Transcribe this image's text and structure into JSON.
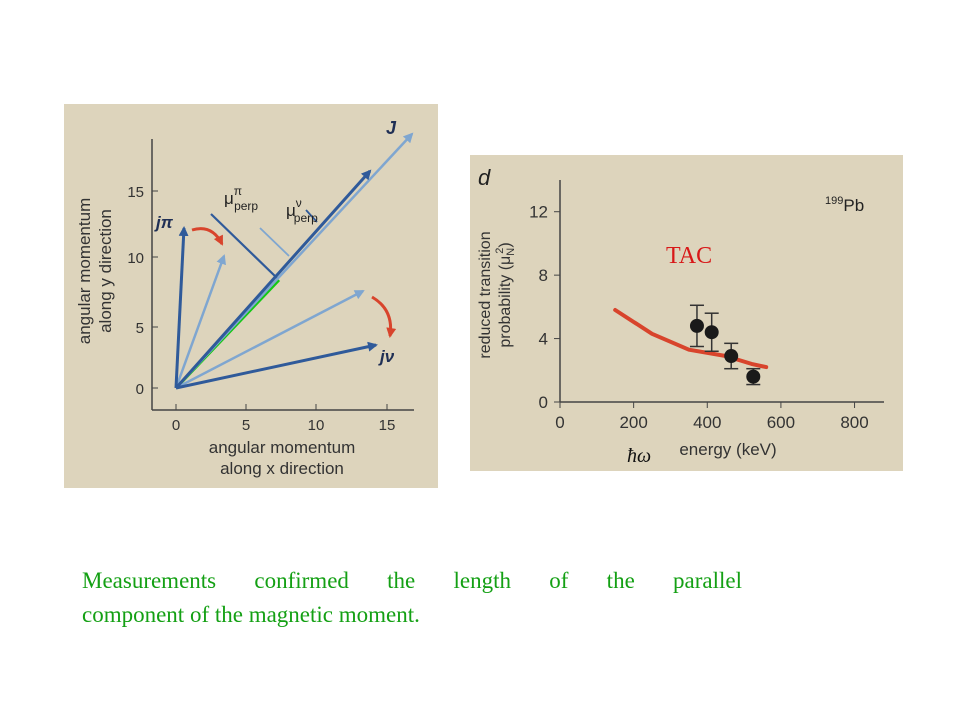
{
  "colors": {
    "background": "#ffffff",
    "panel": "#ddd4bc",
    "dark_vector": "#2f5a9a",
    "light_vector": "#7fa6d0",
    "red": "#d8442c",
    "green": "#14c814",
    "caption": "#14a014",
    "tac_label": "#d81818"
  },
  "left_diagram": {
    "x_label": [
      "angular momentum",
      "along x direction"
    ],
    "y_label": [
      "angular momentum",
      "along y direction"
    ],
    "x_ticks": [
      "0",
      "5",
      "10",
      "15"
    ],
    "y_ticks": [
      "0",
      "5",
      "10",
      "15"
    ],
    "vectors": {
      "j": "J",
      "j_pi": "jπ",
      "j_nu": "jν",
      "mu_pi": "μ",
      "mu_pi_sup": "π",
      "mu_pi_sub": "perp",
      "mu_nu": "μ",
      "mu_nu_sup": "ν",
      "mu_nu_sub": "perp"
    }
  },
  "right_chart": {
    "panel_letter": "d",
    "nucleus_mass": "199",
    "nucleus": "Pb",
    "tac_label": "TAC",
    "hbar_omega": "ħω",
    "xlabel": "energy (keV)",
    "ylabel": [
      "reduced transition",
      "probability (μ"
    ],
    "ylabel_unit_sub": "N",
    "ylabel_unit_sup": "2",
    "ylabel_close": ")",
    "x_ticks": [
      "0",
      "200",
      "400",
      "600",
      "800"
    ],
    "y_ticks": [
      "0",
      "4",
      "8",
      "12"
    ]
  },
  "chart_data": {
    "type": "scatter",
    "title": "",
    "xlabel": "energy (keV)",
    "ylabel": "reduced transition probability (μN²)",
    "xlim": [
      0,
      880
    ],
    "ylim": [
      0,
      14
    ],
    "series": [
      {
        "name": "TAC",
        "kind": "line",
        "color": "#d8442c",
        "x": [
          150,
          250,
          350,
          450,
          520,
          560
        ],
        "y": [
          5.8,
          4.3,
          3.3,
          2.9,
          2.4,
          2.2
        ]
      },
      {
        "name": "199Pb",
        "kind": "points_with_error",
        "color": "#1a1a1a",
        "x": [
          372,
          412,
          465,
          525
        ],
        "y": [
          4.8,
          4.4,
          2.9,
          1.6
        ],
        "yerr": [
          1.3,
          1.2,
          0.8,
          0.5
        ]
      }
    ]
  },
  "caption": {
    "line1": "Measurements confirmed the length of the parallel",
    "line2": "component of the magnetic moment."
  }
}
